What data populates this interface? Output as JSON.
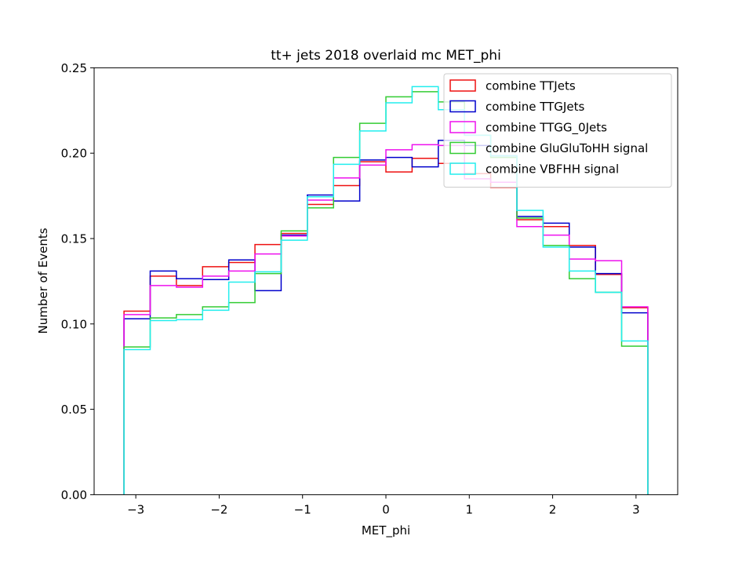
{
  "chart_data": {
    "type": "histogram-step",
    "title": "tt+ jets 2018 overlaid mc MET_phi",
    "xlabel": "MET_phi",
    "ylabel": "Number of Events",
    "xlim": [
      -3.5,
      3.5
    ],
    "ylim": [
      0.0,
      0.25
    ],
    "x_ticks": [
      "−3",
      "−2",
      "−1",
      "0",
      "1",
      "2",
      "3"
    ],
    "x_tick_values": [
      -3,
      -2,
      -1,
      0,
      1,
      2,
      3
    ],
    "y_ticks": [
      "0.00",
      "0.05",
      "0.10",
      "0.15",
      "0.20",
      "0.25"
    ],
    "y_tick_values": [
      0.0,
      0.05,
      0.1,
      0.15,
      0.2,
      0.25
    ],
    "grid": false,
    "legend_position": "upper-right",
    "bin_edges": [
      -3.1416,
      -2.8274,
      -2.5133,
      -2.1991,
      -1.885,
      -1.5708,
      -1.2566,
      -0.9425,
      -0.6283,
      -0.3142,
      0.0,
      0.3142,
      0.6283,
      0.9425,
      1.2566,
      1.5708,
      1.885,
      2.1991,
      2.5133,
      2.8274,
      3.1416
    ],
    "series": [
      {
        "name": "combine TTJets",
        "color": "#ee1111",
        "values": [
          0.1075,
          0.128,
          0.1225,
          0.1335,
          0.136,
          0.1465,
          0.153,
          0.17,
          0.181,
          0.195,
          0.189,
          0.197,
          0.194,
          0.188,
          0.18,
          0.161,
          0.157,
          0.146,
          0.129,
          0.1095
        ]
      },
      {
        "name": "combine TTGJets",
        "color": "#0000cc",
        "values": [
          0.103,
          0.131,
          0.1265,
          0.126,
          0.1375,
          0.1195,
          0.152,
          0.1755,
          0.172,
          0.196,
          0.1975,
          0.192,
          0.2075,
          0.2045,
          0.1985,
          0.163,
          0.159,
          0.145,
          0.1295,
          0.1065
        ]
      },
      {
        "name": "combine TTGG_0Jets",
        "color": "#ee11ee",
        "values": [
          0.1055,
          0.1225,
          0.1215,
          0.128,
          0.131,
          0.141,
          0.1515,
          0.1725,
          0.1855,
          0.193,
          0.202,
          0.205,
          0.2045,
          0.185,
          0.183,
          0.157,
          0.152,
          0.138,
          0.137,
          0.11
        ]
      },
      {
        "name": "combine GluGluToHH signal",
        "color": "#33cc33",
        "values": [
          0.0865,
          0.1035,
          0.1055,
          0.11,
          0.1125,
          0.1295,
          0.1545,
          0.168,
          0.1975,
          0.2175,
          0.233,
          0.236,
          0.23,
          0.2105,
          0.1975,
          0.162,
          0.146,
          0.1265,
          0.1185,
          0.087
        ]
      },
      {
        "name": "combine VBFHH signal",
        "color": "#22eeee",
        "values": [
          0.085,
          0.102,
          0.1025,
          0.108,
          0.1245,
          0.1305,
          0.149,
          0.1745,
          0.1935,
          0.213,
          0.2295,
          0.239,
          0.2255,
          0.2105,
          0.1985,
          0.1665,
          0.145,
          0.131,
          0.1185,
          0.09
        ]
      }
    ]
  }
}
